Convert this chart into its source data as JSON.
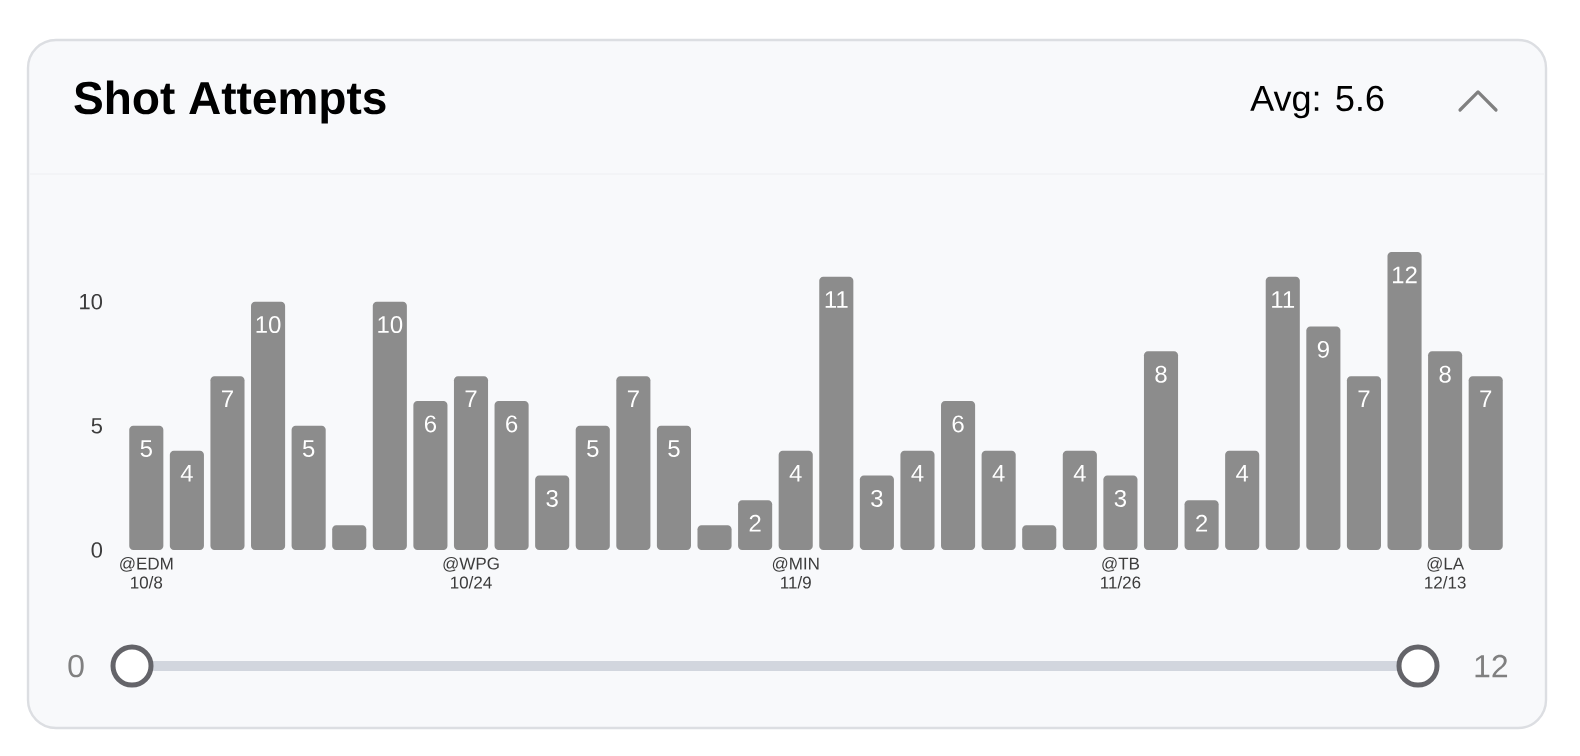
{
  "chart_data": {
    "type": "bar",
    "title": "Shot Attempts",
    "annotations": [
      "Avg: 5.6",
      "0",
      "12"
    ],
    "categories": [
      "@EDM 10/8",
      null,
      null,
      null,
      null,
      null,
      null,
      null,
      "@WPG 10/24",
      null,
      null,
      null,
      null,
      null,
      null,
      null,
      "@MIN 11/9",
      null,
      null,
      null,
      null,
      null,
      null,
      null,
      "@TB 11/26",
      null,
      null,
      null,
      null,
      null,
      null,
      null,
      "@LA 12/13",
      null
    ],
    "values": [
      5,
      4,
      7,
      10,
      5,
      1,
      10,
      6,
      7,
      6,
      3,
      5,
      7,
      5,
      1,
      2,
      4,
      11,
      3,
      4,
      6,
      4,
      1,
      4,
      3,
      8,
      2,
      4,
      11,
      9,
      7,
      12,
      8,
      7
    ],
    "value_labels": [
      "5",
      "4",
      "7",
      "10",
      "5",
      null,
      "10",
      "6",
      "7",
      "6",
      "3",
      "5",
      "7",
      "5",
      null,
      "2",
      "4",
      "11",
      "3",
      "4",
      "6",
      "4",
      null,
      "4",
      "3",
      "8",
      "2",
      "4",
      "11",
      "9",
      "7",
      "12",
      "8",
      "7"
    ],
    "color": "#8c8c8c",
    "ylim": [
      0,
      12
    ],
    "yticks": [
      0,
      5,
      10
    ]
  }
}
